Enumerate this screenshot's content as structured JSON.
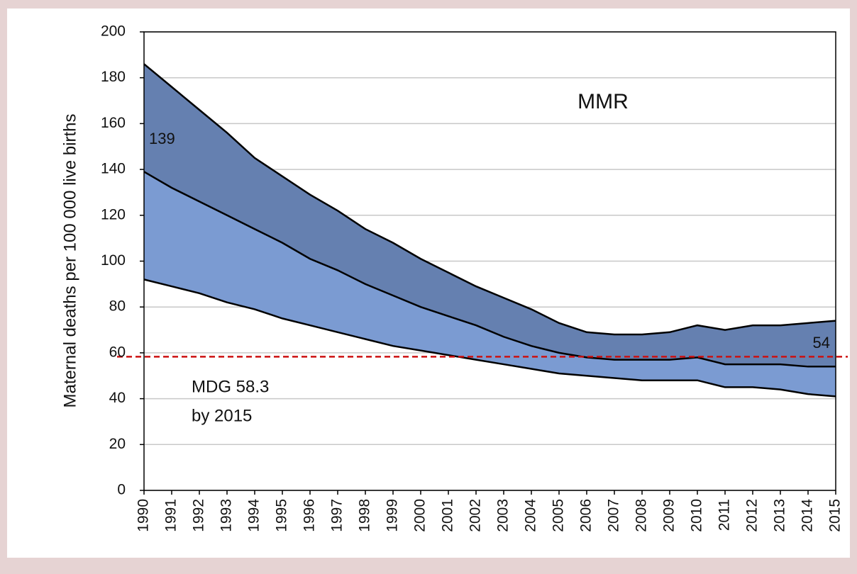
{
  "chart_data": {
    "type": "band",
    "y_label": "Maternal deaths per 100 000 live births",
    "x": [
      1990,
      1991,
      1992,
      1993,
      1994,
      1995,
      1996,
      1997,
      1998,
      1999,
      2000,
      2001,
      2002,
      2003,
      2004,
      2005,
      2006,
      2007,
      2008,
      2009,
      2010,
      2011,
      2012,
      2013,
      2014,
      2015
    ],
    "xlim": [
      1990,
      2015
    ],
    "xticks": [
      1990,
      1991,
      1992,
      1993,
      1994,
      1995,
      1996,
      1997,
      1998,
      1999,
      2000,
      2001,
      2002,
      2003,
      2004,
      2005,
      2006,
      2007,
      2008,
      2009,
      2010,
      2011,
      2012,
      2013,
      2014,
      2015
    ],
    "ylim": [
      0,
      200
    ],
    "yticks": [
      0,
      20,
      40,
      60,
      80,
      100,
      120,
      140,
      160,
      180,
      200
    ],
    "grid": true,
    "series": [
      {
        "color": "#6580b0",
        "values": [
          186,
          176,
          166,
          156,
          145,
          137,
          129,
          122,
          114,
          108,
          101,
          95,
          89,
          84,
          79,
          73,
          69,
          68,
          68,
          69,
          72,
          70,
          72,
          72,
          73,
          74
        ]
      },
      {
        "color": "#000000",
        "values": [
          139,
          132,
          126,
          120,
          114,
          108,
          101,
          96,
          90,
          85,
          80,
          76,
          72,
          67,
          63,
          60,
          58,
          57,
          57,
          57,
          58,
          55,
          55,
          55,
          54,
          54
        ]
      },
      {
        "color": "#7b9bd2",
        "values": [
          92,
          89,
          86,
          82,
          79,
          75,
          72,
          69,
          66,
          63,
          61,
          59,
          57,
          55,
          53,
          51,
          50,
          49,
          48,
          48,
          48,
          45,
          45,
          44,
          42,
          41
        ]
      }
    ],
    "reference_line": {
      "value": 58.3,
      "color": "#cc1111"
    },
    "annotations": {
      "title": "MMR",
      "start": "139",
      "end": "54",
      "target": "MDG 58.3",
      "target_year": "by 2015"
    }
  }
}
